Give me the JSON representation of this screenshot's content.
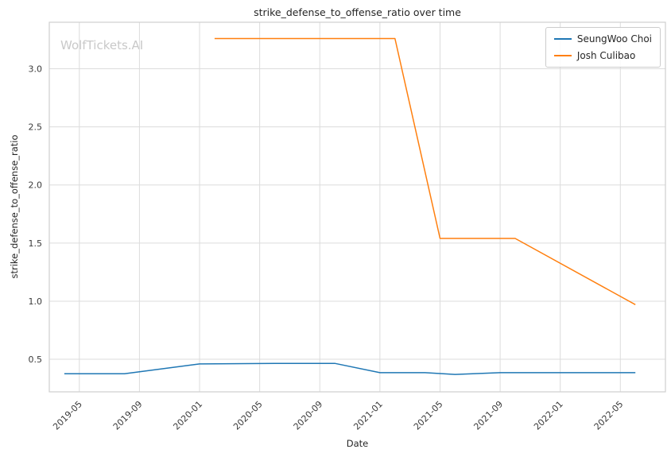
{
  "chart_data": {
    "type": "line",
    "title": "strike_defense_to_offense_ratio over time",
    "xlabel": "Date",
    "ylabel": "strike_defense_to_offense_ratio",
    "watermark": "WolfTickets.AI",
    "legend_position": "upper right",
    "grid": true,
    "x_range": [
      "2019-03",
      "2022-08"
    ],
    "y_range": [
      0.22,
      3.4
    ],
    "x_ticks": [
      "2019-05",
      "2019-09",
      "2020-01",
      "2020-05",
      "2020-09",
      "2021-01",
      "2021-05",
      "2021-09",
      "2022-01",
      "2022-05"
    ],
    "y_ticks": [
      0.5,
      1.0,
      1.5,
      2.0,
      2.5,
      3.0
    ],
    "series": [
      {
        "name": "SeungWoo Choi",
        "color": "#1f77b4",
        "x": [
          "2019-04",
          "2019-08",
          "2020-01",
          "2020-06",
          "2020-10",
          "2021-01",
          "2021-04",
          "2021-06",
          "2021-09",
          "2022-01",
          "2022-06"
        ],
        "y": [
          0.375,
          0.375,
          0.46,
          0.465,
          0.465,
          0.385,
          0.385,
          0.37,
          0.385,
          0.385,
          0.385
        ]
      },
      {
        "name": "Josh Culibao",
        "color": "#ff7f0e",
        "x": [
          "2020-02",
          "2021-02",
          "2021-05",
          "2021-10",
          "2022-06"
        ],
        "y": [
          3.26,
          3.26,
          1.54,
          1.54,
          0.97
        ]
      }
    ]
  }
}
